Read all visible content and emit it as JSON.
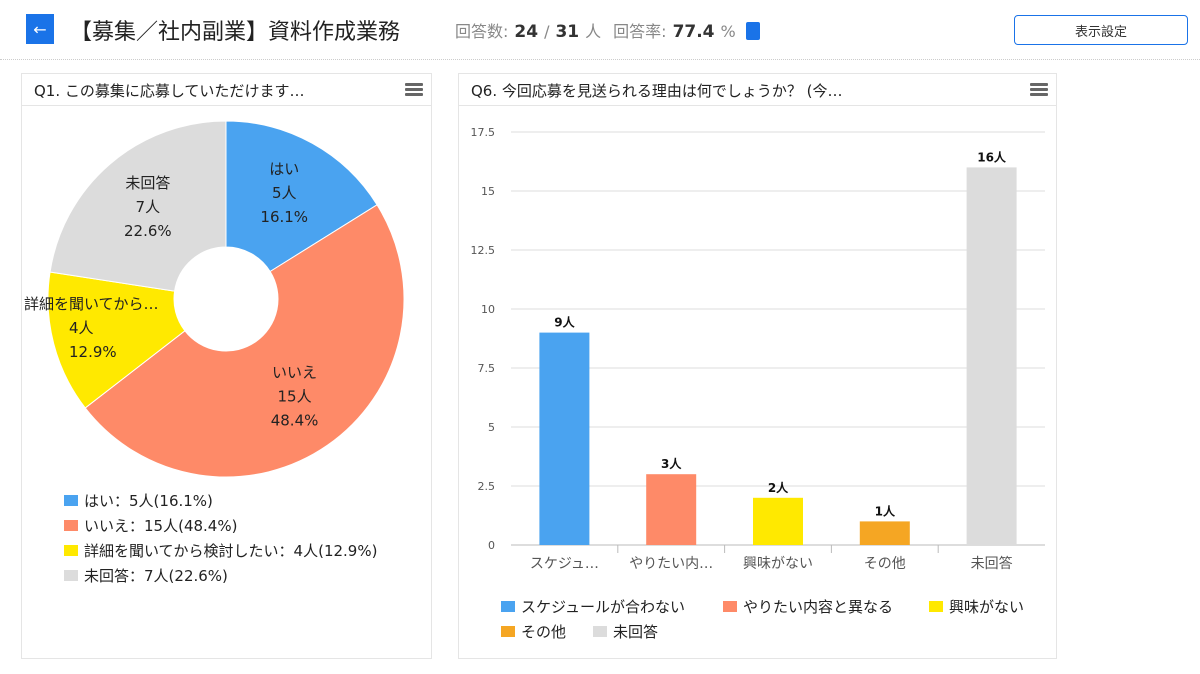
{
  "header": {
    "back_icon": "arrow-left-icon",
    "title": "【募集／社内副業】資料作成業務",
    "responses_label": "回答数:",
    "responses": "24",
    "slash": "/",
    "total": "31",
    "unit": "人",
    "rate_label": "回答率:",
    "rate": "77.4",
    "percent": "%",
    "clipboard_icon": "clipboard-icon",
    "display_settings": "表示設定"
  },
  "colors": {
    "accent": "#1a73e8"
  },
  "chart_data": [
    {
      "type": "pie",
      "title": "Q1. この募集に応募していただけます…",
      "donut": true,
      "slices": [
        {
          "name": "はい",
          "count_label": "5人",
          "pct_label": "16.1%",
          "value": 5,
          "legend": "はい：5人(16.1%)",
          "color": "#4aa3f0"
        },
        {
          "name": "いいえ",
          "count_label": "15人",
          "pct_label": "48.4%",
          "value": 15,
          "legend": "いいえ：15人(48.4%)",
          "color": "#fe8a68"
        },
        {
          "name": "詳細を聞いてから…",
          "count_label": "4人",
          "pct_label": "12.9%",
          "value": 4,
          "legend": "詳細を聞いてから検討したい：4人(12.9%)",
          "color": "#ffe900"
        },
        {
          "name": "未回答",
          "count_label": "7人",
          "pct_label": "22.6%",
          "value": 7,
          "legend": "未回答：7人(22.6%)",
          "color": "#dcdcdc"
        }
      ],
      "legend_position": "bottom"
    },
    {
      "type": "bar",
      "title": "Q6. 今回応募を見送られる理由は何でしょうか？ (今…",
      "categories": [
        "スケジュ…",
        "やりたい内…",
        "興味がない",
        "その他",
        "未回答"
      ],
      "values": [
        9,
        3,
        2,
        1,
        16
      ],
      "data_labels": [
        "9人",
        "3人",
        "2人",
        "1人",
        "16人"
      ],
      "colors": [
        "#4aa3f0",
        "#fe8a68",
        "#ffe900",
        "#f5a623",
        "#dcdcdc"
      ],
      "legend": [
        "スケジュールが合わない",
        "やりたい内容と異なる",
        "興味がない",
        "その他",
        "未回答"
      ],
      "yticks": [
        "0",
        "2.5",
        "5",
        "7.5",
        "10",
        "12.5",
        "15",
        "17.5"
      ],
      "ylim": [
        0,
        17.5
      ],
      "grid": true,
      "legend_position": "bottom"
    }
  ]
}
